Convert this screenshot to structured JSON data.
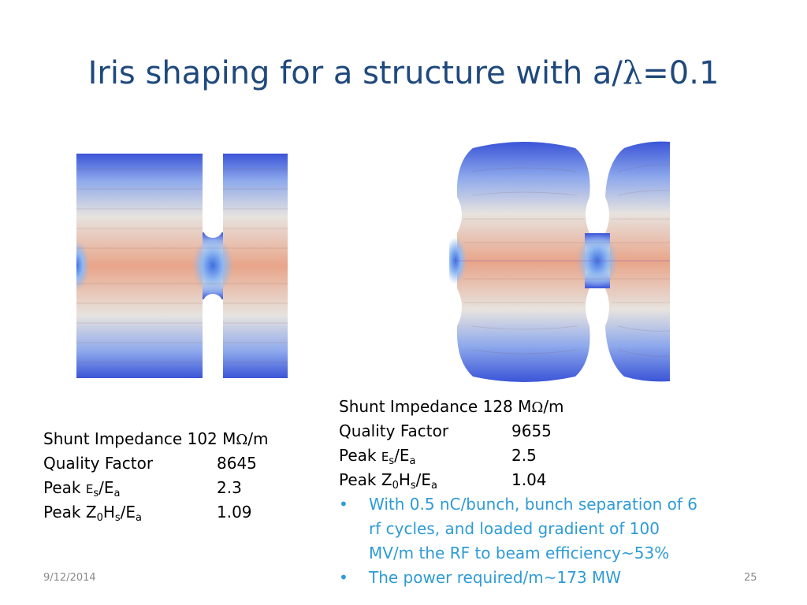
{
  "slide": {
    "title_prefix": "Iris shaping for a structure with a/",
    "title_symbol": "λ",
    "title_suffix": "=0.1"
  },
  "left_params": {
    "shunt": {
      "label_start": "Shunt Impedance 102 M",
      "omega": "Ω",
      "label_end": "/m"
    },
    "quality": {
      "label": "Quality Factor",
      "value": "8645"
    },
    "peak_e": {
      "word": "Peak ",
      "e1": "E",
      "e1_sub": "s",
      "slash": "/E",
      "e2_sub": "a",
      "value": "2.3"
    },
    "peak_h": {
      "word": "Peak Z",
      "z_sub": "0",
      "h": "H",
      "h_sub": "s",
      "slash": "/E",
      "e_sub": "a",
      "value": "1.09"
    }
  },
  "right_params": {
    "shunt": {
      "label_start": "Shunt Impedance 128 M",
      "omega": "Ω",
      "label_end": "/m"
    },
    "quality": {
      "label": "Quality Factor",
      "value": "9655"
    },
    "peak_e": {
      "word": "Peak ",
      "e1": "E",
      "e1_sub": "s",
      "slash": "/E",
      "e2_sub": "a",
      "value": "2.5"
    },
    "peak_h": {
      "word": "Peak Z",
      "z_sub": "0",
      "h": "H",
      "h_sub": "s",
      "slash": "/E",
      "e_sub": "a",
      "value": "1.04"
    },
    "bullets": [
      "With 0.5 nC/bunch, bunch separation of 6",
      "rf cycles, and loaded gradient of 100",
      "MV/m the RF to beam efficiency~53%",
      "The power required/m~173 MW"
    ]
  },
  "footer": {
    "date": "9/12/2014",
    "page": "25"
  },
  "colors": {
    "title": "#1f497d",
    "bullet_text": "#2e9bd6",
    "field_high": "#e8a58a",
    "field_low": "#3b55d8"
  }
}
